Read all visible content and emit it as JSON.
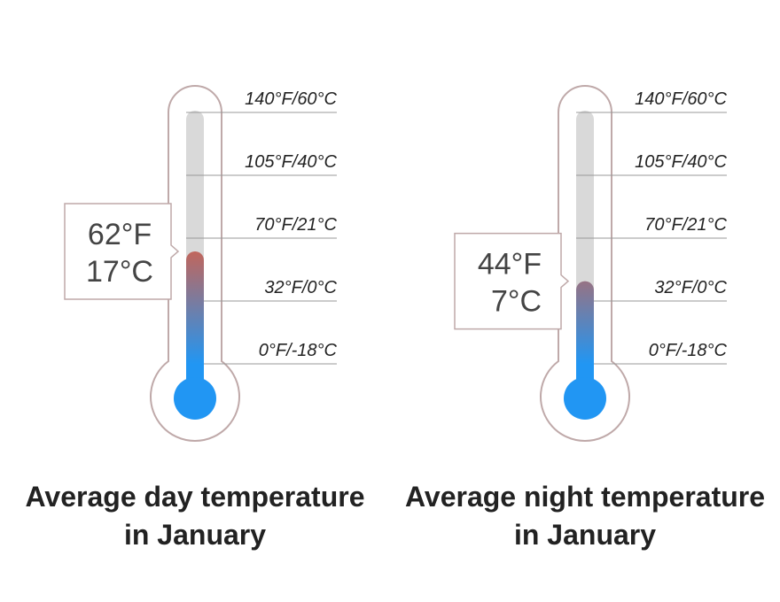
{
  "chart_data": [
    {
      "type": "thermometer",
      "title": "Average day temperature in January",
      "values": [
        62
      ],
      "value_labels": [
        [
          "62°F",
          "17°C"
        ]
      ],
      "ylim": [
        0,
        140
      ],
      "yticks": [
        {
          "value": 0,
          "label": "0°F/-18°C"
        },
        {
          "value": 32,
          "label": "32°F/0°C"
        },
        {
          "value": 70,
          "label": "70°F/21°C"
        },
        {
          "value": 105,
          "label": "105°F/40°C"
        },
        {
          "value": 140,
          "label": "140°F/60°C"
        }
      ],
      "color": "#d4604a"
    },
    {
      "type": "thermometer",
      "title": "Average night temperature in January",
      "values": [
        44
      ],
      "value_labels": [
        [
          "44°F",
          "7°C"
        ]
      ],
      "ylim": [
        0,
        140
      ],
      "yticks": [
        {
          "value": 0,
          "label": "0°F/-18°C"
        },
        {
          "value": 32,
          "label": "32°F/0°C"
        },
        {
          "value": 70,
          "label": "70°F/21°C"
        },
        {
          "value": 105,
          "label": "105°F/40°C"
        },
        {
          "value": 140,
          "label": "140°F/60°C"
        }
      ],
      "color": "#d4604a"
    }
  ]
}
